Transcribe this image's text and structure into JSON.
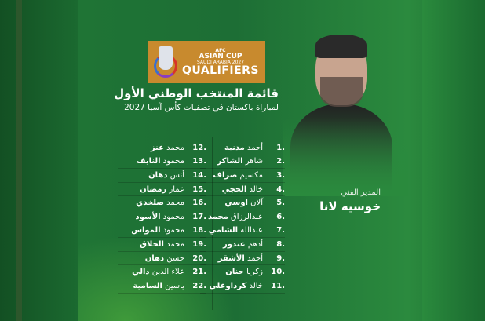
{
  "logo": {
    "line1": "AFC",
    "line2": "ASIAN CUP",
    "line3": "SAUDI ARABIA 2027",
    "line4": "QUALIFIERS"
  },
  "title": "قائمة المنتخب الوطني الأول",
  "subtitle": "لمباراة باكستان في تصفيات كأس آسيا 2027",
  "coach": {
    "role": "المدير الفني",
    "name": "خوسيه لانا"
  },
  "players_right": [
    {
      "num": "1.",
      "first": "أحمد",
      "last": "مدنية"
    },
    {
      "num": "2.",
      "first": "شاهر",
      "last": "الشاكر"
    },
    {
      "num": "3.",
      "first": "مكسيم",
      "last": "صراف"
    },
    {
      "num": "4.",
      "first": "خالد",
      "last": "الحجي"
    },
    {
      "num": "5.",
      "first": "آلان",
      "last": "اوسي"
    },
    {
      "num": "6.",
      "first": "عبدالرزاق",
      "last": "محمد"
    },
    {
      "num": "7.",
      "first": "عبدالله",
      "last": "الشامي"
    },
    {
      "num": "8.",
      "first": "أدهم",
      "last": "غندور"
    },
    {
      "num": "9.",
      "first": "أحمد",
      "last": "الأشقر"
    },
    {
      "num": "10.",
      "first": "زكريا",
      "last": "حنان"
    },
    {
      "num": "11.",
      "first": "خالد",
      "last": "كرداوغلي"
    }
  ],
  "players_left": [
    {
      "num": "12.",
      "first": "محمد",
      "last": "عنز"
    },
    {
      "num": "13.",
      "first": "محمود",
      "last": "النايف"
    },
    {
      "num": "14.",
      "first": "أنس",
      "last": "دهان"
    },
    {
      "num": "15.",
      "first": "عمار",
      "last": "رمضان"
    },
    {
      "num": "16.",
      "first": "محمد",
      "last": "صلخدي"
    },
    {
      "num": "17.",
      "first": "محمود",
      "last": "الأسود"
    },
    {
      "num": "18.",
      "first": "محمود",
      "last": "المواس"
    },
    {
      "num": "19.",
      "first": "محمد",
      "last": "الحلاق"
    },
    {
      "num": "20.",
      "first": "حسن",
      "last": "دهان"
    },
    {
      "num": "21.",
      "first": "علاء الدين",
      "last": "دالي"
    },
    {
      "num": "22.",
      "first": "ياسين",
      "last": "السامية"
    }
  ]
}
